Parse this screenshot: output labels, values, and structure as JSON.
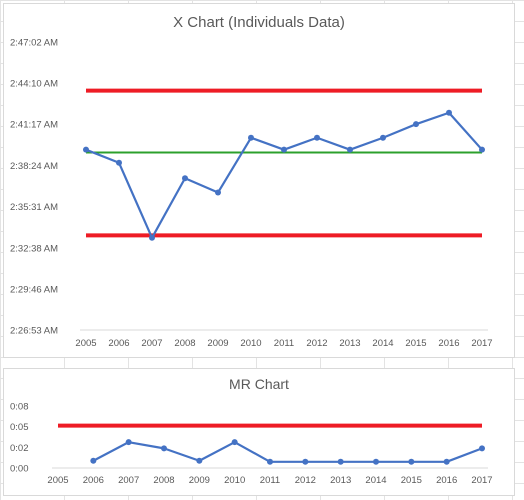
{
  "chart_data": [
    {
      "type": "line",
      "title": "X Chart (Individuals Data)",
      "categories": [
        "2005",
        "2006",
        "2007",
        "2008",
        "2009",
        "2010",
        "2011",
        "2012",
        "2013",
        "2014",
        "2015",
        "2016",
        "2017"
      ],
      "y_ticks": [
        "2:26:53 AM",
        "2:29:46 AM",
        "2:32:38 AM",
        "2:35:31 AM",
        "2:38:24 AM",
        "2:41:17 AM",
        "2:44:10 AM",
        "2:47:02 AM"
      ],
      "y_tick_seconds": [
        8813,
        8986,
        9158,
        9331,
        9504,
        9677,
        9850,
        10022
      ],
      "ylim_seconds": [
        8813,
        10022
      ],
      "series": [
        {
          "role": "data",
          "color": "#4472c4",
          "values_seconds": [
            9570,
            9515,
            9200,
            9450,
            9390,
            9620,
            9570,
            9620,
            9570,
            9620,
            9677,
            9725,
            9570
          ]
        }
      ],
      "limits": {
        "ucl_seconds": 9818,
        "center_seconds": 9558,
        "lcl_seconds": 9210,
        "limit_color": "#ee1c25",
        "center_color": "#2ca02c"
      },
      "grid": false
    },
    {
      "type": "line",
      "title": "MR Chart",
      "categories": [
        "2005",
        "2006",
        "2007",
        "2008",
        "2009",
        "2010",
        "2011",
        "2012",
        "2013",
        "2014",
        "2015",
        "2016",
        "2017"
      ],
      "y_ticks": [
        "0:00",
        "0:02",
        "0:05",
        "0:08"
      ],
      "y_tick_values": [
        0,
        1,
        2,
        3
      ],
      "ylim": [
        0,
        3
      ],
      "series": [
        {
          "role": "data",
          "color": "#4472c4",
          "values": [
            null,
            0.35,
            1.25,
            0.95,
            0.35,
            1.25,
            0.3,
            0.3,
            0.3,
            0.3,
            0.3,
            0.3,
            0.95
          ]
        }
      ],
      "limits": {
        "ucl": 2.05,
        "limit_color": "#ee1c25"
      },
      "grid": false
    }
  ]
}
